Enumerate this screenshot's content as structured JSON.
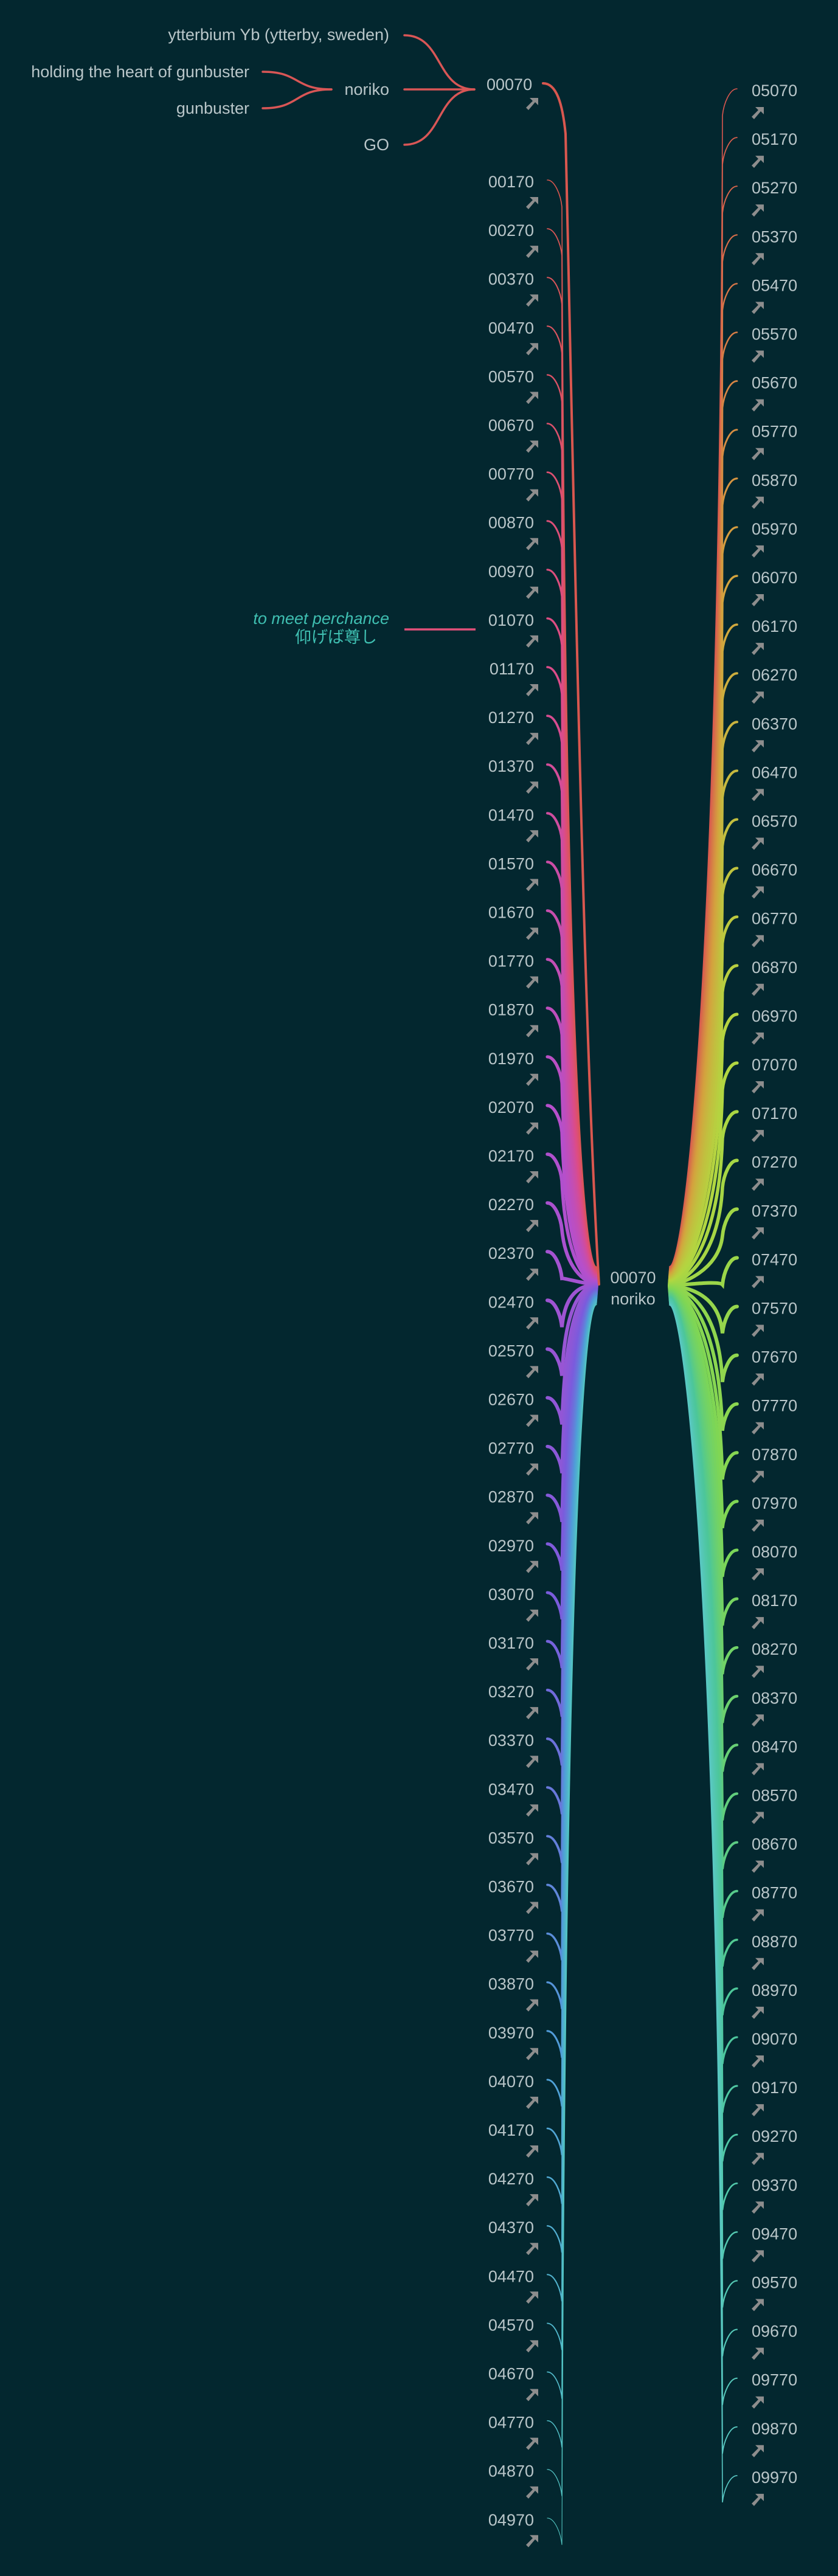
{
  "center": {
    "code": "00070",
    "label": "noriko"
  },
  "top_node": {
    "code": "00070",
    "children": [
      {
        "label": "ytterbium Yb (ytterby, sweden)"
      },
      {
        "label": "noriko",
        "children": [
          {
            "label": "holding the heart of gunbuster"
          },
          {
            "label": "gunbuster"
          }
        ]
      },
      {
        "label": "GO"
      }
    ]
  },
  "annotation": {
    "line1": "to meet perchance",
    "line2": "仰げば尊し",
    "target": "01070"
  },
  "left_nodes": [
    "00170",
    "00270",
    "00370",
    "00470",
    "00570",
    "00670",
    "00770",
    "00870",
    "00970",
    "01070",
    "01170",
    "01270",
    "01370",
    "01470",
    "01570",
    "01670",
    "01770",
    "01870",
    "01970",
    "02070",
    "02170",
    "02270",
    "02370",
    "02470",
    "02570",
    "02670",
    "02770",
    "02870",
    "02970",
    "03070",
    "03170",
    "03270",
    "03370",
    "03470",
    "03570",
    "03670",
    "03770",
    "03870",
    "03970",
    "04070",
    "04170",
    "04270",
    "04370",
    "04470",
    "04570",
    "04670",
    "04770",
    "04870",
    "04970"
  ],
  "right_nodes": [
    "05070",
    "05170",
    "05270",
    "05370",
    "05470",
    "05570",
    "05670",
    "05770",
    "05870",
    "05970",
    "06070",
    "06170",
    "06270",
    "06370",
    "06470",
    "06570",
    "06670",
    "06770",
    "06870",
    "06970",
    "07070",
    "07170",
    "07270",
    "07370",
    "07470",
    "07570",
    "07670",
    "07770",
    "07870",
    "07970",
    "08070",
    "08170",
    "08270",
    "08370",
    "08470",
    "08570",
    "08670",
    "08770",
    "08870",
    "08970",
    "09070",
    "09170",
    "09270",
    "09370",
    "09470",
    "09570",
    "09670",
    "09770",
    "09870",
    "09970"
  ],
  "link_icon": "arrow-link-icon",
  "colors": {
    "background": "#03272f",
    "label_text": "#b9c6c9",
    "top_branch": "#d95656",
    "annotation_text": "#3fbfb1",
    "annotation_line": "#e2507a",
    "icon": "#8d8d8d",
    "left_gradient": [
      "#d9574f",
      "#dd4c86",
      "#b54fcc",
      "#7b5bdc",
      "#4f9ed8",
      "#53c7c2"
    ],
    "right_gradient": [
      "#d9574f",
      "#d4a23e",
      "#b3d640",
      "#7ed655",
      "#4cc69a",
      "#5ac8c4"
    ]
  }
}
